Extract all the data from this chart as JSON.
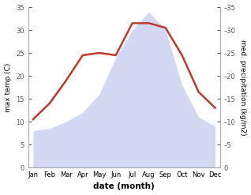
{
  "months": [
    "Jan",
    "Feb",
    "Mar",
    "Apr",
    "May",
    "Jun",
    "Jul",
    "Aug",
    "Sep",
    "Oct",
    "Nov",
    "Dec"
  ],
  "temperature": [
    10.5,
    14.0,
    19.0,
    24.5,
    25.0,
    24.5,
    31.5,
    31.5,
    30.5,
    24.5,
    16.5,
    13.0
  ],
  "precipitation": [
    8.0,
    8.5,
    10.0,
    12.0,
    16.0,
    24.0,
    30.0,
    34.0,
    30.0,
    18.0,
    11.0,
    9.0
  ],
  "temp_color": "#c0392b",
  "precip_fill_color": "#c5cdf0",
  "precip_alpha": 0.75,
  "ylim": [
    0,
    35
  ],
  "yticks": [
    0,
    5,
    10,
    15,
    20,
    25,
    30,
    35
  ],
  "xlabel": "date (month)",
  "ylabel_left": "max temp (C)",
  "ylabel_right": "med. precipitation (kg/m2)",
  "bg_color": "#ffffff",
  "spine_color": "#aaaaaa",
  "tick_color": "#555555",
  "label_fontsize": 6.5,
  "tick_fontsize": 6.0,
  "xlabel_fontsize": 7.5
}
